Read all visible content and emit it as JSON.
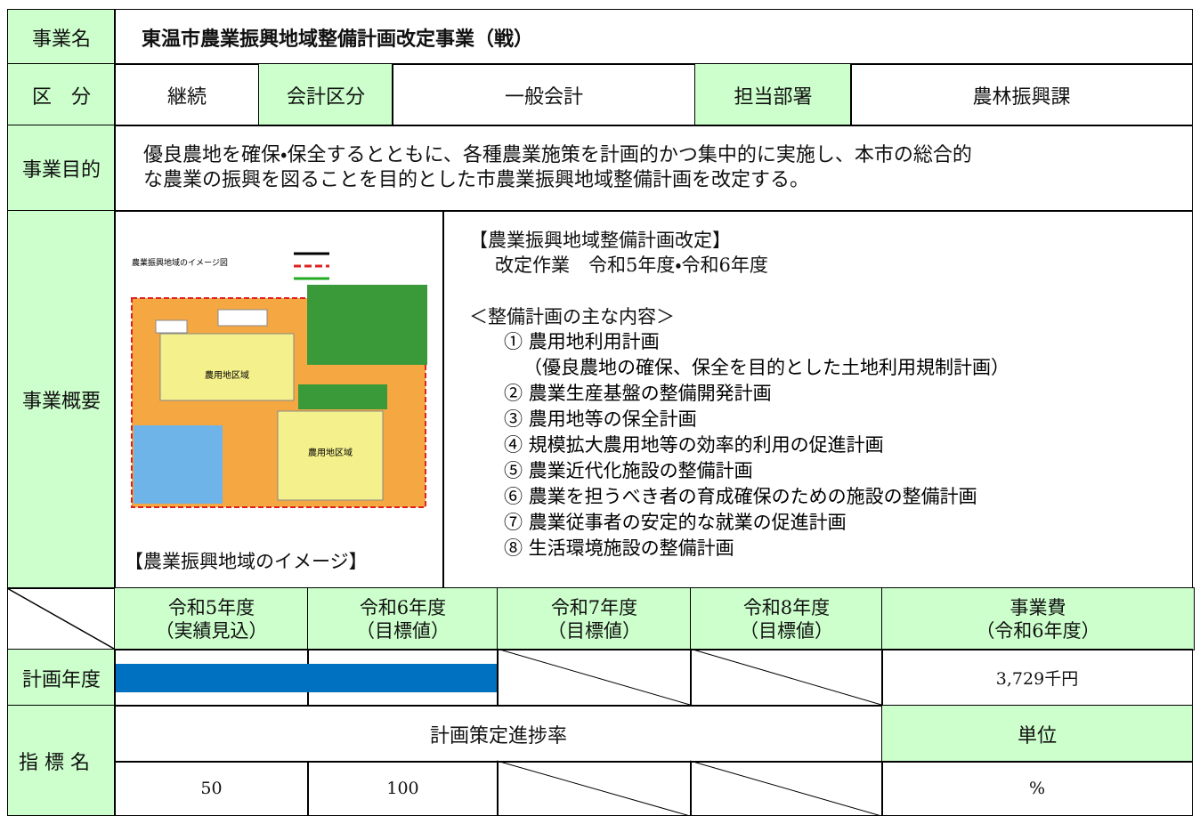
{
  "business_name": {
    "label": "事業名",
    "value": "東温市農業振興地域整備計画改定事業（戦）"
  },
  "category_row": {
    "label": "区　分",
    "category": "継続",
    "accounting_label": "会計区分",
    "accounting": "一般会計",
    "department_label": "担当部署",
    "department": "農林振興課"
  },
  "purpose": {
    "label": "事業目的",
    "lines": [
      "優良農地を確保・保全するとともに、各種農業施策を計画的かつ集中的に実施し、本市の総合的",
      "な農業の振興を図ることを目的とした市農業振興地域整備計画を改定する。"
    ]
  },
  "overview": {
    "label": "事業概要",
    "image": {
      "title": "農業振興地域のイメージ図",
      "areas": [
        "農用地区域",
        "農用地区域"
      ],
      "caption": "【農業振興地域のイメージ】"
    },
    "heading": "【農業振興地域整備計画改定】",
    "schedule": "改定作業　令和5年度・令和6年度",
    "contents_title": "＜整備計画の主な内容＞",
    "items": [
      {
        "text": "① 農用地利用計画",
        "note": "（優良農地の確保、保全を目的とした土地利用規制計画）"
      },
      {
        "text": "② 農業生産基盤の整備開発計画"
      },
      {
        "text": "③ 農用地等の保全計画"
      },
      {
        "text": "④ 規模拡大農用地等の効率的利用の促進計画"
      },
      {
        "text": "⑤ 農業近代化施設の整備計画"
      },
      {
        "text": "⑥ 農業を担うべき者の育成確保のための施設の整備計画"
      },
      {
        "text": "⑦ 農業従事者の安定的な就業の促進計画"
      },
      {
        "text": "⑧ 生活環境施設の整備計画"
      }
    ]
  },
  "schedule_table": {
    "columns": [
      [
        "令和5年度",
        "（実績見込）"
      ],
      [
        "令和6年度",
        "（目標値）"
      ],
      [
        "令和7年度",
        "（目標値）"
      ],
      [
        "令和8年度",
        "（目標値）"
      ],
      [
        "事業費",
        "（令和6年度）"
      ]
    ],
    "plan_label": "計画年度",
    "cost": "3,729千円",
    "indicator_label": "指 標 名",
    "indicator_name": "計画策定進捗率",
    "unit_label": "単位",
    "values": [
      "50",
      "100"
    ],
    "unit": "%"
  }
}
